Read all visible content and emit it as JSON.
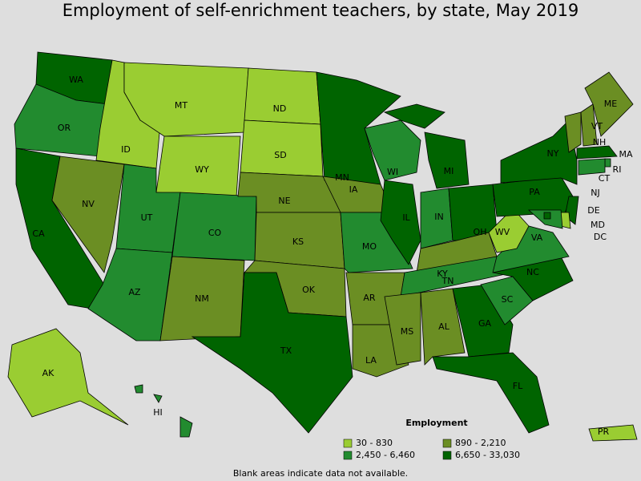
{
  "title": "Employment of self-enrichment teachers, by state, May 2019",
  "legend": {
    "title": "Employment",
    "classes": [
      {
        "label": "30 - 830",
        "color": "#9acd32"
      },
      {
        "label": "890 - 2,210",
        "color": "#6b8e23"
      },
      {
        "label": "2,450 - 6,460",
        "color": "#228b2f"
      },
      {
        "label": "6,650 - 33,030",
        "color": "#006400"
      }
    ]
  },
  "states": [
    {
      "label": "WA",
      "class": 3
    },
    {
      "label": "OR",
      "class": 2
    },
    {
      "label": "CA",
      "class": 3
    },
    {
      "label": "NV",
      "class": 1
    },
    {
      "label": "ID",
      "class": 0
    },
    {
      "label": "MT",
      "class": 0
    },
    {
      "label": "WY",
      "class": 0
    },
    {
      "label": "UT",
      "class": 2
    },
    {
      "label": "CO",
      "class": 2
    },
    {
      "label": "AZ",
      "class": 2
    },
    {
      "label": "NM",
      "class": 1
    },
    {
      "label": "ND",
      "class": 0
    },
    {
      "label": "SD",
      "class": 0
    },
    {
      "label": "NE",
      "class": 1
    },
    {
      "label": "KS",
      "class": 1
    },
    {
      "label": "OK",
      "class": 1
    },
    {
      "label": "TX",
      "class": 3
    },
    {
      "label": "MN",
      "class": 3
    },
    {
      "label": "IA",
      "class": 1
    },
    {
      "label": "MO",
      "class": 2
    },
    {
      "label": "AR",
      "class": 1
    },
    {
      "label": "LA",
      "class": 1
    },
    {
      "label": "WI",
      "class": 2
    },
    {
      "label": "IL",
      "class": 3
    },
    {
      "label": "MI",
      "class": 3
    },
    {
      "label": "IN",
      "class": 2
    },
    {
      "label": "OH",
      "class": 3
    },
    {
      "label": "KY",
      "class": 1
    },
    {
      "label": "TN",
      "class": 2
    },
    {
      "label": "MS",
      "class": 1
    },
    {
      "label": "AL",
      "class": 1
    },
    {
      "label": "GA",
      "class": 3
    },
    {
      "label": "FL",
      "class": 3
    },
    {
      "label": "SC",
      "class": 2
    },
    {
      "label": "NC",
      "class": 3
    },
    {
      "label": "VA",
      "class": 2
    },
    {
      "label": "WV",
      "class": 0
    },
    {
      "label": "PA",
      "class": 3
    },
    {
      "label": "NY",
      "class": 3
    },
    {
      "label": "VT",
      "class": 1
    },
    {
      "label": "NH",
      "class": 1
    },
    {
      "label": "ME",
      "class": 1
    },
    {
      "label": "MA",
      "class": 3
    },
    {
      "label": "RI",
      "class": 2
    },
    {
      "label": "CT",
      "class": 2
    },
    {
      "label": "NJ",
      "class": 3
    },
    {
      "label": "DE",
      "class": 0
    },
    {
      "label": "MD",
      "class": 2
    },
    {
      "label": "DC",
      "class": 3
    },
    {
      "label": "AK",
      "class": 0
    },
    {
      "label": "HI",
      "class": 2
    },
    {
      "label": "PR",
      "class": 0
    }
  ],
  "note": "Blank areas indicate data not available."
}
